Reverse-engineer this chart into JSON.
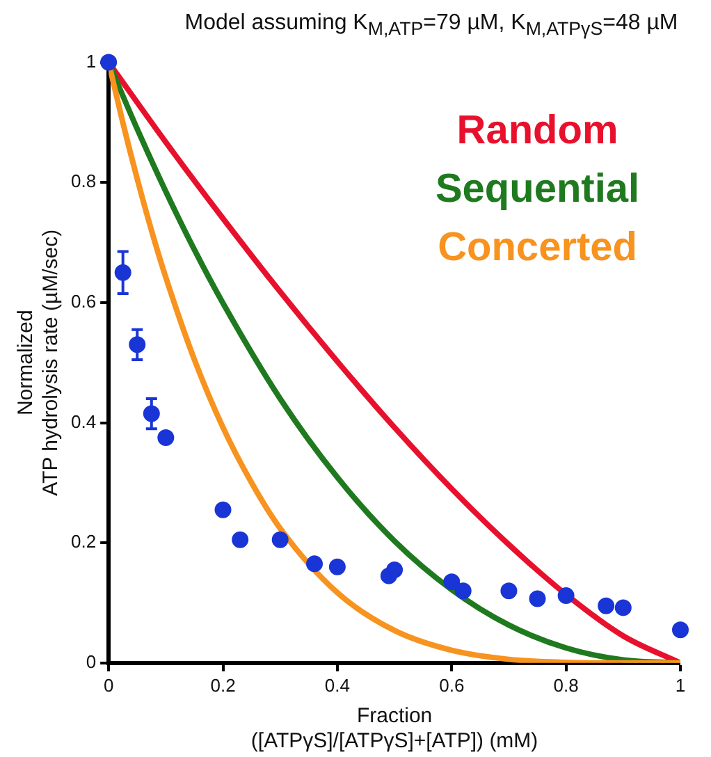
{
  "chart_data": {
    "type": "line",
    "title": "Model assuming K$_{M,ATP}$=79 µM, K$_{M,ATPγS}$=48 µM",
    "xlabel": "Fraction\n([ATPγS]/[ATPγS]+[ATP]) (mM)",
    "ylabel": "Normalized\nATP hydrolysis rate (µM/sec)",
    "xlim": [
      0,
      1
    ],
    "xticks": [
      0,
      0.2,
      0.4,
      0.6,
      0.8,
      1
    ],
    "ylim": [
      0,
      1
    ],
    "yticks": [
      0,
      0.2,
      0.4,
      0.6,
      0.8,
      1
    ],
    "grid": false,
    "legend": "top right",
    "series": [
      {
        "name": "Random",
        "color": "#e8112d",
        "marker": "none",
        "x": [
          0,
          0.1,
          0.2,
          0.3,
          0.4,
          0.5,
          0.6,
          0.7,
          0.8,
          0.9,
          1
        ],
        "values": [
          1,
          0.867,
          0.74,
          0.618,
          0.502,
          0.392,
          0.29,
          0.197,
          0.114,
          0.045,
          0
        ]
      },
      {
        "name": "Sequential",
        "color": "#1f7a1f",
        "marker": "none",
        "x": [
          0,
          0.05,
          0.1,
          0.15,
          0.2,
          0.3,
          0.4,
          0.5,
          0.6,
          0.7,
          0.8,
          0.9,
          1
        ],
        "values": [
          1,
          0.889,
          0.785,
          0.688,
          0.599,
          0.44,
          0.309,
          0.203,
          0.122,
          0.063,
          0.025,
          0.005,
          0
        ]
      },
      {
        "name": "Concerted",
        "color": "#f7931e",
        "marker": "none",
        "x": [
          0,
          0.025,
          0.05,
          0.075,
          0.1,
          0.15,
          0.2,
          0.25,
          0.3,
          0.4,
          0.5,
          0.6,
          0.7,
          0.8,
          0.9,
          1
        ],
        "values": [
          1,
          0.899,
          0.806,
          0.72,
          0.642,
          0.505,
          0.392,
          0.3,
          0.224,
          0.117,
          0.054,
          0.021,
          0.006,
          0.001,
          0,
          0
        ]
      },
      {
        "color": "#1a35d6",
        "type": "scatter",
        "marker": "circle",
        "x": [
          0,
          0.025,
          0.05,
          0.075,
          0.1,
          0.2,
          0.23,
          0.3,
          0.36,
          0.4,
          0.49,
          0.5,
          0.6,
          0.62,
          0.7,
          0.75,
          0.8,
          0.87,
          0.9,
          1
        ],
        "values": [
          1,
          0.65,
          0.53,
          0.415,
          0.375,
          0.255,
          0.205,
          0.205,
          0.165,
          0.16,
          0.145,
          0.155,
          0.135,
          0.12,
          0.12,
          0.107,
          0.112,
          0.095,
          0.092,
          0.055
        ],
        "errors": [
          null,
          0.035,
          0.025,
          0.025,
          null,
          null,
          null,
          null,
          null,
          null,
          null,
          null,
          null,
          null,
          null,
          null,
          null,
          null,
          null,
          null
        ]
      }
    ]
  }
}
